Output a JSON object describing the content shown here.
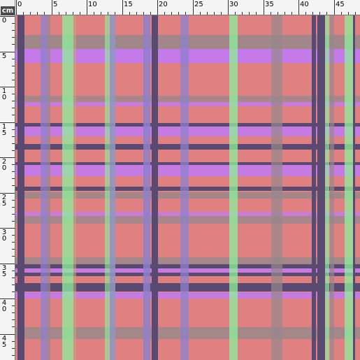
{
  "ruler": {
    "unit": "cm",
    "h_labels": [
      "0",
      "5",
      "10",
      "15",
      "20",
      "25",
      "30",
      "35",
      "40",
      "45"
    ],
    "v_labels": [
      "0",
      "5",
      "10",
      "15",
      "20",
      "25",
      "30",
      "35",
      "40",
      "45"
    ]
  },
  "colors": {
    "base": "#e08080",
    "dark_stripe": "#5a4a72",
    "gray_stripe": "#96888c",
    "violet_stripe": "#c47ae8",
    "green_stripe": "#8ef29c",
    "blue_stripe": "#8e80cc",
    "tan_stripe": "#c8a27a"
  }
}
